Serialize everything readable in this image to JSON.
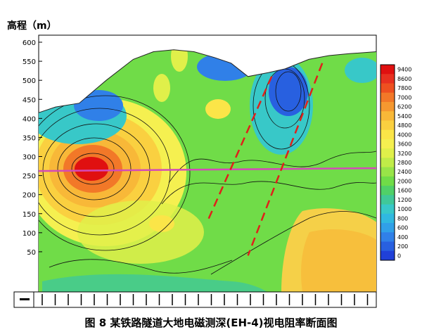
{
  "chart_data": {
    "type": "heatmap",
    "ylabel": "高程（m）",
    "caption": "图 8   某铁路隧道大地电磁测深(EH-4)视电阻率断面图",
    "y_ticks": [
      600,
      550,
      500,
      450,
      400,
      350,
      300,
      250,
      200,
      150,
      100,
      50
    ],
    "ylim": [
      0,
      610
    ],
    "colorbar_ticks": [
      9400,
      8600,
      7800,
      7000,
      6200,
      5400,
      4800,
      4000,
      3600,
      3200,
      2800,
      2400,
      2000,
      1600,
      1200,
      1000,
      800,
      600,
      400,
      200,
      0
    ],
    "colorbar_colors": [
      "#e01010",
      "#e83020",
      "#ee5020",
      "#f27828",
      "#f59830",
      "#f8b838",
      "#fad040",
      "#fbe548",
      "#f5f050",
      "#e0f04a",
      "#c0ec48",
      "#98e448",
      "#70dc48",
      "#50d068",
      "#40c898",
      "#38c8c8",
      "#30b8e0",
      "#30a0e8",
      "#3080e8",
      "#2860e0",
      "#2040d8"
    ],
    "surface_profile": [
      [
        0,
        415
      ],
      [
        5,
        430
      ],
      [
        12,
        440
      ],
      [
        20,
        500
      ],
      [
        28,
        555
      ],
      [
        34,
        575
      ],
      [
        40,
        580
      ],
      [
        46,
        575
      ],
      [
        52,
        560
      ],
      [
        57,
        545
      ],
      [
        62,
        510
      ],
      [
        68,
        520
      ],
      [
        73,
        530
      ],
      [
        80,
        555
      ],
      [
        86,
        565
      ],
      [
        92,
        570
      ],
      [
        100,
        575
      ]
    ],
    "line_elevation": 262,
    "faults": [
      {
        "top": [
          69,
          510
        ],
        "bottom": [
          50,
          130
        ]
      },
      {
        "top": [
          84,
          545
        ],
        "bottom": [
          62,
          40
        ]
      }
    ]
  },
  "colors": {
    "line": "#d44ab8",
    "fault": "#e0201a"
  }
}
